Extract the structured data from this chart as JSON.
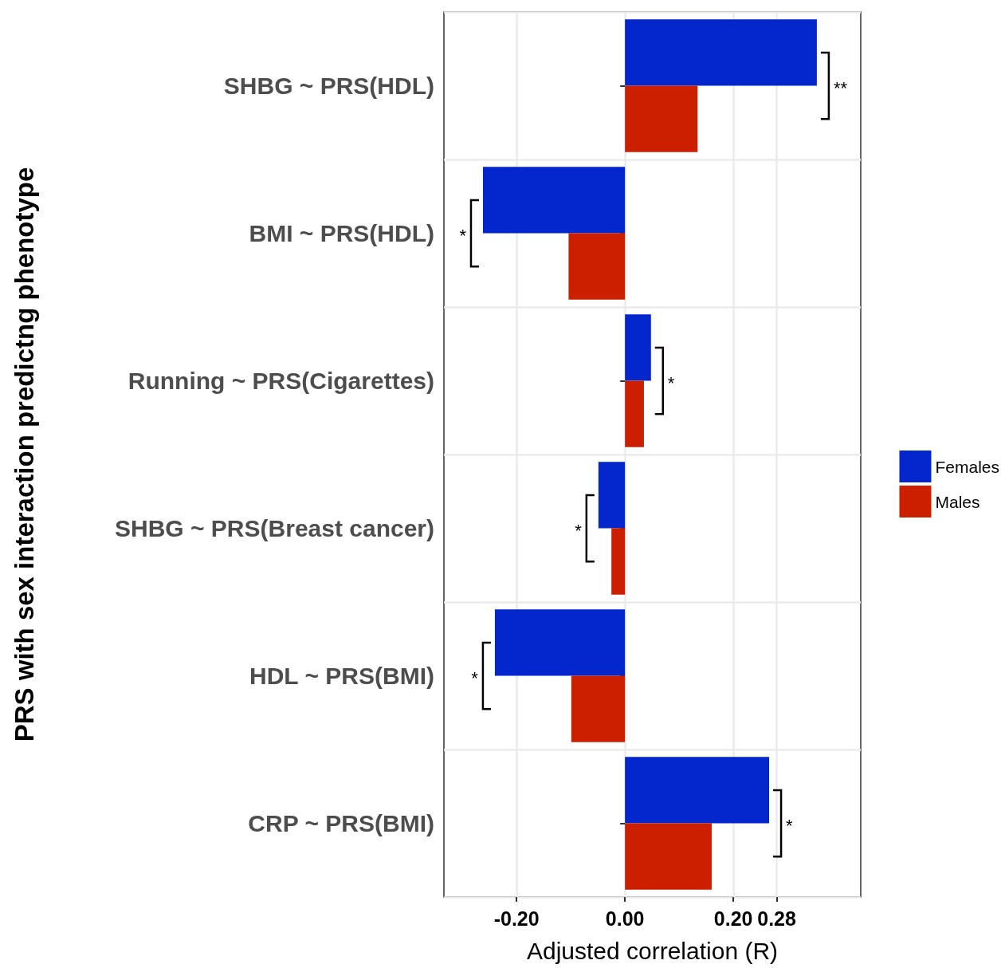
{
  "chart_data": {
    "type": "bar",
    "orientation": "horizontal",
    "xlabel": "Adjusted correlation (R)",
    "ylabel": "PRS with sex interaction predictng phenotype",
    "categories": [
      "SHBG ~ PRS(HDL)",
      "BMI ~ PRS(HDL)",
      "Running ~ PRS(Cigarettes)",
      "SHBG ~ PRS(Breast cancer)",
      "HDL ~ PRS(BMI)",
      "CRP ~ PRS(BMI)"
    ],
    "series": [
      {
        "name": "Females",
        "color": "#0327cc",
        "values": [
          0.354,
          -0.262,
          0.048,
          -0.049,
          -0.24,
          0.266
        ]
      },
      {
        "name": "Males",
        "color": "#cc1f00",
        "values": [
          0.134,
          -0.104,
          0.035,
          -0.025,
          -0.099,
          0.16
        ]
      }
    ],
    "xlim": [
      -0.334,
      0.435
    ],
    "xticks": [
      {
        "value": -0.2,
        "label": "-0.20"
      },
      {
        "value": 0,
        "label": "0.00"
      },
      {
        "value": 0.2,
        "label": "0.20"
      },
      {
        "value": 0.28,
        "label": "0.28"
      }
    ],
    "annotations": [
      "**",
      "*",
      "*",
      "*",
      "*",
      "*"
    ],
    "grid": true,
    "legend": "right"
  }
}
